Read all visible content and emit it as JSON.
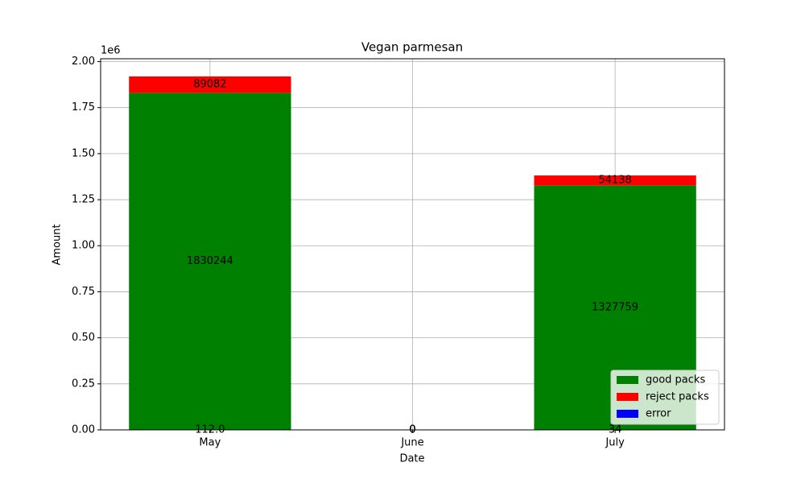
{
  "chart_data": {
    "type": "bar",
    "stacked": true,
    "title": "Vegan parmesan",
    "x_label": "Date",
    "y_label": "Amount",
    "y_offset_label": "1e6",
    "categories": [
      "May",
      "June",
      "July"
    ],
    "series": [
      {
        "name": "good packs",
        "color": "#008000",
        "values": [
          1830244,
          0,
          1327759
        ]
      },
      {
        "name": "reject packs",
        "color": "#ff0000",
        "values": [
          89082,
          0,
          54138
        ]
      },
      {
        "name": "error",
        "color": "#0000ff",
        "values": [
          112,
          0,
          34
        ],
        "value_labels": [
          "112.0",
          "0",
          "34"
        ]
      }
    ],
    "ylim": [
      0,
      2015292
    ],
    "yticks": [
      {
        "value": 0,
        "label": "0.00"
      },
      {
        "value": 250000,
        "label": "0.25"
      },
      {
        "value": 500000,
        "label": "0.50"
      },
      {
        "value": 750000,
        "label": "0.75"
      },
      {
        "value": 1000000,
        "label": "1.00"
      },
      {
        "value": 1250000,
        "label": "1.25"
      },
      {
        "value": 1500000,
        "label": "1.50"
      },
      {
        "value": 1750000,
        "label": "1.75"
      },
      {
        "value": 2000000,
        "label": "2.00"
      }
    ],
    "grid": true,
    "legend": "lower right"
  }
}
